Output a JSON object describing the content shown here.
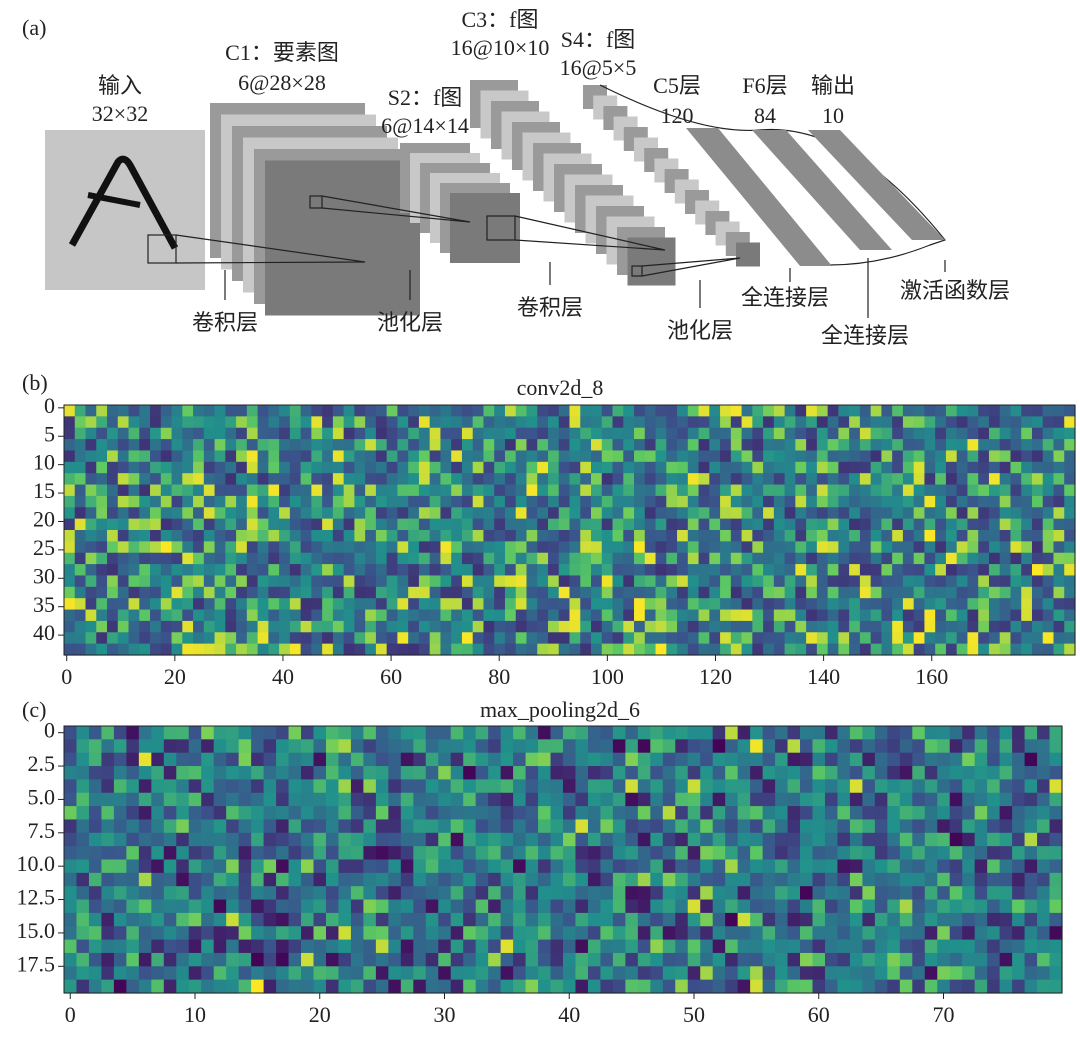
{
  "diagram": {
    "label": "(a)",
    "input": {
      "title": "输入",
      "size": "32×32"
    },
    "c1": {
      "title": "C1：要素图",
      "size": "6@28×28"
    },
    "s2": {
      "title": "S2：f图",
      "size": "6@14×14"
    },
    "c3": {
      "title": "C3：f图",
      "size": "16@10×10"
    },
    "s4": {
      "title": "S4：f图",
      "size": "16@5×5"
    },
    "c5": {
      "title": "C5层",
      "size": "120"
    },
    "f6": {
      "title": "F6层",
      "size": "84"
    },
    "out": {
      "title": "输出",
      "size": "10"
    },
    "captions": [
      "卷积层",
      "池化层",
      "卷积层",
      "池化层",
      "全连接层",
      "激活函数层",
      "全连接层"
    ]
  },
  "chart_data": [
    {
      "type": "heatmap",
      "label": "(b)",
      "title": "conv2d_8",
      "colormap": "viridis",
      "xlim": [
        -0.5,
        186.5
      ],
      "ylim": [
        -0.5,
        43.5
      ],
      "xticks": [
        0,
        20,
        40,
        60,
        80,
        100,
        120,
        140,
        160
      ],
      "yticks": [
        0,
        5,
        10,
        15,
        20,
        25,
        30,
        35,
        40
      ]
    },
    {
      "type": "heatmap",
      "label": "(c)",
      "title": "max_pooling2d_6",
      "colormap": "viridis",
      "xlim": [
        -0.5,
        79.5
      ],
      "ylim": [
        -0.5,
        19.5
      ],
      "xticks": [
        0,
        10,
        20,
        30,
        40,
        50,
        60,
        70
      ],
      "yticks": [
        0,
        2.5,
        {
          "value": 5,
          "label": "5.0"
        },
        7.5,
        {
          "value": 10,
          "label": "10.0"
        },
        12.5,
        {
          "value": 15,
          "label": "15.0"
        },
        17.5
      ]
    }
  ]
}
